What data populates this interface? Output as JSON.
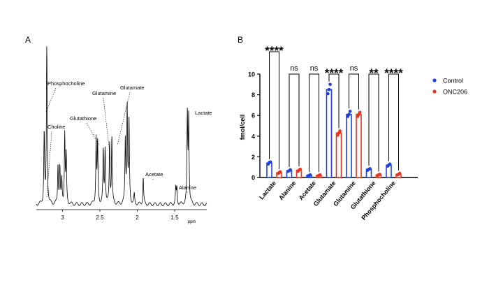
{
  "panels": {
    "a_label": "A",
    "b_label": "B"
  },
  "chart_data": [
    {
      "type": "line",
      "panel": "A",
      "title": "",
      "xlabel": "ppm",
      "ylabel": "",
      "xlim": [
        3.35,
        1.07
      ],
      "x_reversed": true,
      "grid": false,
      "xticks": [
        {
          "value": 3,
          "label": "3"
        },
        {
          "value": 2.5,
          "label": "2.5"
        },
        {
          "value": 2,
          "label": "2"
        },
        {
          "value": 1.5,
          "label": "1.5"
        }
      ],
      "peaks": [
        {
          "ppm": 1.33,
          "intensity": 0.57
        },
        {
          "ppm": 1.312,
          "intensity": 0.56
        },
        {
          "ppm": 1.47,
          "intensity": 0.1
        },
        {
          "ppm": 1.485,
          "intensity": 0.1
        },
        {
          "ppm": 1.92,
          "intensity": 0.17
        },
        {
          "ppm": 2.04,
          "intensity": 0.06
        },
        {
          "ppm": 2.11,
          "intensity": 0.52
        },
        {
          "ppm": 2.135,
          "intensity": 0.62
        },
        {
          "ppm": 2.16,
          "intensity": 0.4
        },
        {
          "ppm": 2.34,
          "intensity": 0.42
        },
        {
          "ppm": 2.37,
          "intensity": 0.38
        },
        {
          "ppm": 2.43,
          "intensity": 0.35
        },
        {
          "ppm": 2.455,
          "intensity": 0.33
        },
        {
          "ppm": 2.53,
          "intensity": 0.38
        },
        {
          "ppm": 2.55,
          "intensity": 0.41
        },
        {
          "ppm": 2.95,
          "intensity": 0.3
        },
        {
          "ppm": 2.97,
          "intensity": 0.44
        },
        {
          "ppm": 3.01,
          "intensity": 0.15
        },
        {
          "ppm": 3.035,
          "intensity": 0.23
        },
        {
          "ppm": 3.06,
          "intensity": 0.25
        },
        {
          "ppm": 3.21,
          "intensity": 1.0
        },
        {
          "ppm": 3.245,
          "intensity": 0.45
        }
      ],
      "annotations": [
        {
          "text": "Phosphocholine",
          "ppm": 3.21
        },
        {
          "text": "Choline",
          "ppm": 3.19
        },
        {
          "text": "Glutathione",
          "ppm": 2.55
        },
        {
          "text": "Glutamine",
          "ppm": 2.44
        },
        {
          "text": "Glutamate",
          "ppm": 2.34
        },
        {
          "text": "Acetate",
          "ppm": 1.92
        },
        {
          "text": "Alanine",
          "ppm": 1.48
        },
        {
          "text": "Lactate",
          "ppm": 1.32
        }
      ]
    },
    {
      "type": "bar",
      "panel": "B",
      "title": "",
      "xlabel": "",
      "ylabel": "fmol/cell",
      "ylim": [
        0,
        10
      ],
      "yticks": [
        0,
        2,
        4,
        6,
        8,
        10
      ],
      "grid": false,
      "legend_position": "right",
      "categories": [
        "Lactate",
        "Alanine",
        "Acetate",
        "Glutamate",
        "Glutamine",
        "Glutathione",
        "Phosphocholine"
      ],
      "series": [
        {
          "name": "Control",
          "color": "#1f3fe0",
          "values": [
            1.4,
            0.65,
            0.2,
            8.5,
            6.1,
            0.8,
            1.2
          ],
          "points": [
            [
              1.3,
              1.45,
              1.5
            ],
            [
              0.6,
              0.65,
              0.75
            ],
            [
              0.15,
              0.2,
              0.25
            ],
            [
              8.1,
              8.5,
              9.0
            ],
            [
              5.9,
              6.1,
              6.4
            ],
            [
              0.7,
              0.8,
              0.85
            ],
            [
              1.1,
              1.2,
              1.3
            ]
          ]
        },
        {
          "name": "ONC206",
          "color": "#e8331c",
          "values": [
            0.45,
            0.7,
            0.2,
            4.3,
            6.1,
            0.25,
            0.3
          ],
          "points": [
            [
              0.4,
              0.45,
              0.55
            ],
            [
              0.6,
              0.7,
              0.8
            ],
            [
              0.15,
              0.2,
              0.25
            ],
            [
              4.1,
              4.3,
              4.5
            ],
            [
              5.9,
              6.1,
              6.3
            ],
            [
              0.2,
              0.25,
              0.3
            ],
            [
              0.25,
              0.3,
              0.4
            ]
          ]
        }
      ],
      "significance": [
        "****",
        "ns",
        "ns",
        "****",
        "ns",
        "**",
        "****"
      ]
    }
  ]
}
